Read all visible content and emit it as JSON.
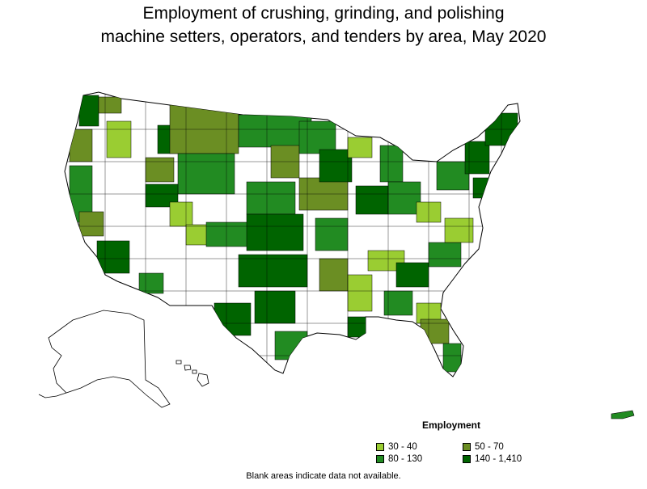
{
  "title": {
    "line1": "Employment of crushing, grinding, and polishing",
    "line2": "machine setters, operators, and tenders by area, May 2020"
  },
  "legend": {
    "title": "Employment",
    "items": [
      {
        "label": "30 - 40",
        "color": "#9acd32"
      },
      {
        "label": "50 - 70",
        "color": "#6b8e23"
      },
      {
        "label": "80 - 130",
        "color": "#228b22"
      },
      {
        "label": "140 - 1,410",
        "color": "#006400"
      }
    ]
  },
  "footnote": "Blank areas indicate data not available."
}
